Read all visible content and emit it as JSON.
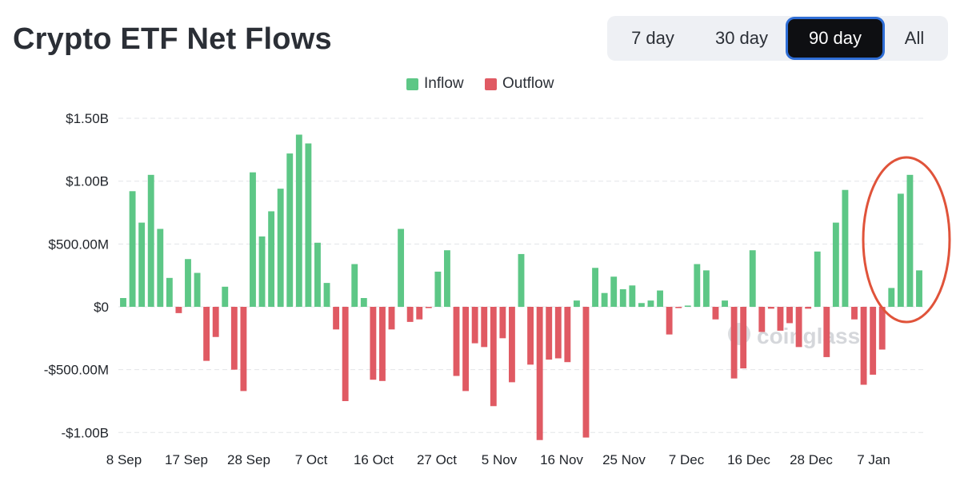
{
  "header": {
    "title": "Crypto ETF Net Flows"
  },
  "range_selector": {
    "options": [
      {
        "label": "7 day",
        "active": false
      },
      {
        "label": "30 day",
        "active": false
      },
      {
        "label": "90 day",
        "active": true
      },
      {
        "label": "All",
        "active": false
      }
    ]
  },
  "watermark": "coinglass",
  "colors": {
    "inflow": "#5dc786",
    "outflow": "#e05a63",
    "highlight": "#e0533a",
    "grid": "#e3e5e8"
  },
  "chart_data": {
    "type": "bar",
    "title": "Crypto ETF Net Flows",
    "legend": [
      {
        "name": "Inflow",
        "color": "#5dc786"
      },
      {
        "name": "Outflow",
        "color": "#e05a63"
      }
    ],
    "legend_position": "top-center",
    "ylim": [
      -1070000000,
      1550000000
    ],
    "y_ticks": [
      {
        "value": 1500000000,
        "label": "$1.50B"
      },
      {
        "value": 1000000000,
        "label": "$1.00B"
      },
      {
        "value": 500000000,
        "label": "$500.00M"
      },
      {
        "value": 0,
        "label": "$0"
      },
      {
        "value": -500000000,
        "label": "-$500.00M"
      },
      {
        "value": -1000000000,
        "label": "-$1.00B"
      }
    ],
    "x_tick_labels": [
      "8 Sep",
      "17 Sep",
      "28 Sep",
      "7 Oct",
      "16 Oct",
      "27 Oct",
      "5 Nov",
      "16 Nov",
      "25 Nov",
      "7 Dec",
      "16 Dec",
      "28 Dec",
      "7 Jan"
    ],
    "grid": true,
    "highlight": "last 4 bars circled",
    "values_millions": [
      70,
      920,
      670,
      1050,
      620,
      230,
      -50,
      380,
      270,
      -430,
      -240,
      160,
      -500,
      -670,
      1070,
      560,
      760,
      940,
      1220,
      1370,
      1300,
      510,
      190,
      -180,
      -750,
      340,
      70,
      -580,
      -590,
      -180,
      620,
      -120,
      -100,
      -10,
      280,
      450,
      -550,
      -670,
      -290,
      -320,
      -790,
      -250,
      -600,
      420,
      -460,
      -1060,
      -420,
      -410,
      -440,
      50,
      -1040,
      310,
      110,
      240,
      140,
      170,
      30,
      50,
      130,
      -220,
      -10,
      10,
      340,
      290,
      -100,
      50,
      -570,
      -490,
      450,
      -200,
      -15,
      -190,
      -130,
      -320,
      -15,
      440,
      -400,
      670,
      930,
      -100,
      -620,
      -540,
      -340,
      150,
      900,
      1050,
      290
    ]
  }
}
